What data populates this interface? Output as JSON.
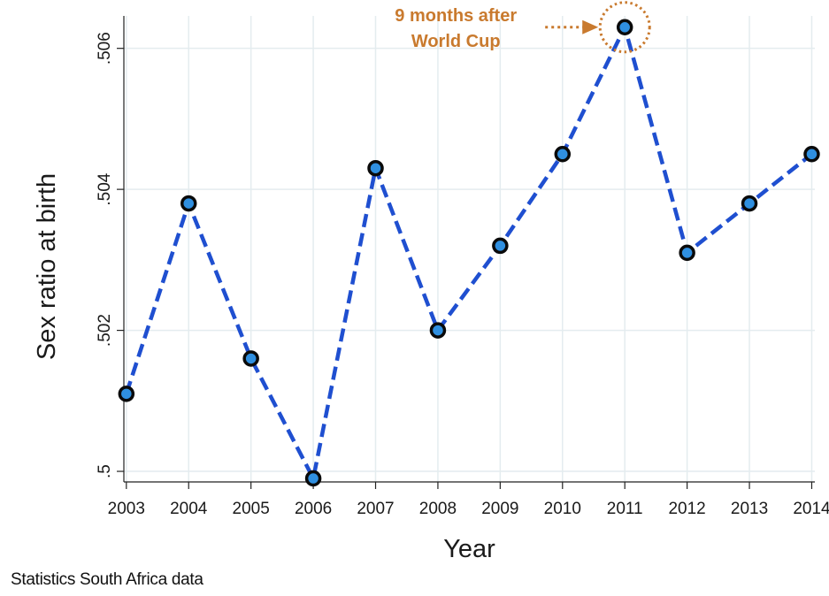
{
  "chart_data": {
    "type": "line",
    "xlabel": "Year",
    "ylabel": "Sex ratio at birth",
    "x": [
      2003,
      2004,
      2005,
      2006,
      2007,
      2008,
      2009,
      2010,
      2011,
      2012,
      2013,
      2014
    ],
    "series": [
      {
        "values": [
          0.5011,
          0.5038,
          0.5016,
          0.4999,
          0.5043,
          0.502,
          0.5032,
          0.5045,
          0.5063,
          0.5031,
          0.5038,
          0.5045
        ]
      }
    ],
    "xticks": [
      "2003",
      "2004",
      "2005",
      "2006",
      "2007",
      "2008",
      "2009",
      "2010",
      "2011",
      "2012",
      "2013",
      "2014"
    ],
    "yticks": [
      {
        "value": 0.5,
        "label": ".5"
      },
      {
        "value": 0.502,
        "label": ".502"
      },
      {
        "value": 0.504,
        "label": ".504"
      },
      {
        "value": 0.506,
        "label": ".506"
      }
    ],
    "xlim": [
      2002.96,
      2014.05
    ],
    "ylim": [
      0.49985,
      0.50646
    ],
    "grid": true,
    "annotation": {
      "lines": [
        "9 months after",
        "World Cup"
      ],
      "x": 2011,
      "y": 0.5063
    },
    "colors": {
      "line": "#1f4fd0",
      "marker_fill": "#2f8fe0",
      "marker_edge": "#0a0a0a",
      "annotation": "#c97a2e",
      "grid": "#e4ecef"
    }
  },
  "source_note": "Statistics South Africa data"
}
